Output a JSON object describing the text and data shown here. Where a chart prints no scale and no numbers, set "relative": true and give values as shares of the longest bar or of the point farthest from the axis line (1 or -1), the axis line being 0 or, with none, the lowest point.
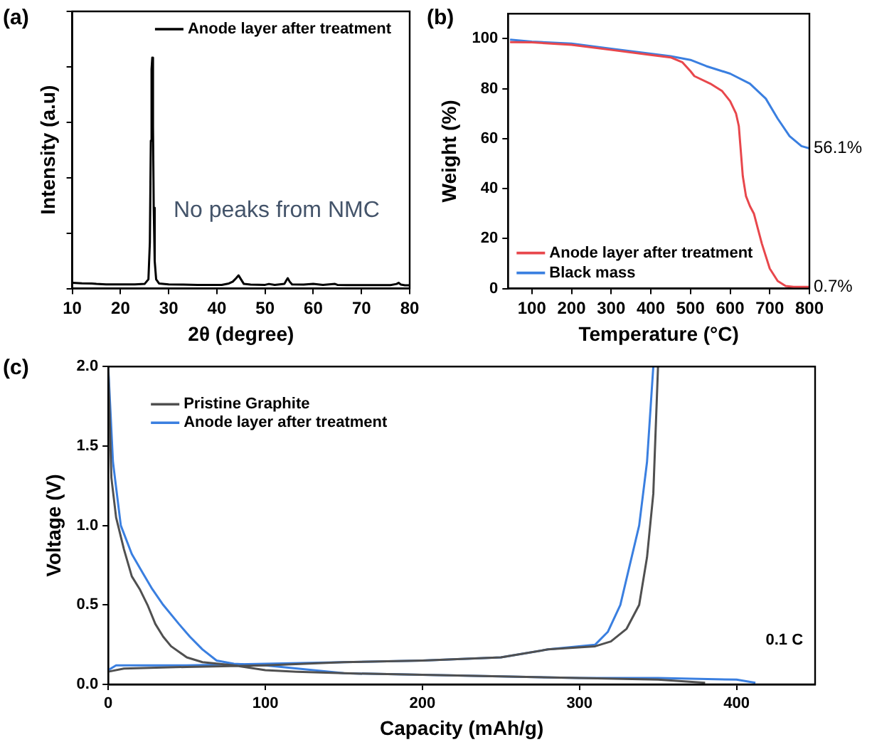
{
  "chart_data": [
    {
      "type": "line",
      "title": "(a)",
      "xlabel": "2θ (degree)",
      "ylabel": "Intensity (a.u)",
      "relative": true,
      "tick_labels": "x",
      "xlim": [
        10,
        80
      ],
      "xticks": [
        10,
        20,
        30,
        40,
        50,
        60,
        70,
        80
      ],
      "legend": "top right",
      "grid": false,
      "annotations": [
        "No peaks from NMC"
      ],
      "series": [
        {
          "name": "Anode layer after treatment",
          "color": "#000000",
          "x": [
            10,
            12,
            14,
            15,
            17,
            20,
            23,
            25,
            25.8,
            26.1,
            26.3,
            26.45,
            26.6,
            26.75,
            26.9,
            27.1,
            27.4,
            28,
            30,
            33,
            36,
            39,
            41,
            42.5,
            43.3,
            44,
            44.5,
            45,
            45.6,
            47,
            50,
            50.8,
            52,
            54,
            54.4,
            54.7,
            55.1,
            55.6,
            58,
            60,
            62,
            64.5,
            65,
            67,
            70,
            73,
            76,
            77.3,
            77.7,
            78.2,
            79,
            80
          ],
          "values": [
            0.025,
            0.023,
            0.022,
            0.02,
            0.018,
            0.018,
            0.018,
            0.02,
            0.04,
            0.2,
            0.64,
            0.95,
            1,
            0.7,
            0.35,
            0.12,
            0.04,
            0.022,
            0.018,
            0.017,
            0.016,
            0.016,
            0.016,
            0.022,
            0.03,
            0.045,
            0.057,
            0.04,
            0.02,
            0.017,
            0.016,
            0.02,
            0.016,
            0.02,
            0.035,
            0.045,
            0.03,
            0.018,
            0.017,
            0.02,
            0.016,
            0.02,
            0.016,
            0.015,
            0.015,
            0.015,
            0.015,
            0.02,
            0.025,
            0.017,
            0.014,
            0.014
          ]
        }
      ]
    },
    {
      "type": "line",
      "title": "(b)",
      "xlabel": "Temperature (°C)",
      "ylabel": "Weight (%)",
      "xlim": [
        40,
        800
      ],
      "xticks": [
        100,
        200,
        300,
        400,
        500,
        600,
        700,
        800
      ],
      "ylim": [
        0,
        110
      ],
      "yticks": [
        0,
        20,
        40,
        60,
        80,
        100
      ],
      "legend": "bottom left",
      "grid": false,
      "annotations": [
        {
          "text": "56.1%",
          "x": 800,
          "y": 56.1
        },
        {
          "text": "0.7%",
          "x": 800,
          "y": 0.7
        }
      ],
      "series": [
        {
          "name": "Anode layer after treatment",
          "color": "#e8474c",
          "x": [
            45,
            100,
            200,
            300,
            400,
            450,
            480,
            500,
            510,
            550,
            580,
            600,
            615,
            622,
            627,
            632,
            640,
            650,
            660,
            670,
            680,
            700,
            720,
            740,
            760,
            800
          ],
          "values": [
            98.6,
            98.5,
            97.5,
            95.5,
            93.5,
            92.5,
            90.5,
            87,
            85,
            82,
            79,
            75,
            70,
            65,
            55,
            45,
            37,
            33,
            30,
            24,
            18,
            8,
            3,
            1,
            0.7,
            0.7
          ]
        },
        {
          "name": "Black mass",
          "color": "#3a7fe0",
          "x": [
            45,
            100,
            200,
            300,
            400,
            450,
            500,
            540,
            600,
            650,
            690,
            720,
            750,
            780,
            800
          ],
          "values": [
            99.6,
            98.8,
            98,
            96,
            94,
            93,
            91.5,
            89,
            86,
            82,
            76,
            68,
            61,
            57,
            56.1
          ]
        }
      ]
    },
    {
      "type": "line",
      "title": "(c)",
      "xlabel": "Capacity (mAh/g)",
      "ylabel": "Voltage (V)",
      "xlim": [
        0,
        450
      ],
      "xticks": [
        0,
        100,
        200,
        300,
        400
      ],
      "ylim": [
        0,
        2
      ],
      "yticks": [
        {
          "value": 0,
          "label": "0.0"
        },
        {
          "value": 0.5,
          "label": "0.5"
        },
        {
          "value": 1,
          "label": "1.0"
        },
        {
          "value": 1.5,
          "label": "1.5"
        },
        {
          "value": 2,
          "label": "2.0"
        }
      ],
      "legend": "top left",
      "grid": false,
      "annotations": [
        "0.1 C"
      ],
      "series": [
        {
          "name": "Pristine Graphite",
          "color": "#505050",
          "x": [
            0,
            2,
            5,
            10,
            15,
            20,
            25,
            30,
            35,
            40,
            50,
            60,
            80,
            100,
            120,
            150,
            200,
            250,
            300,
            350,
            380,
            null,
            0,
            10,
            50,
            100,
            150,
            200,
            250,
            280,
            310,
            320,
            330,
            338,
            343,
            347,
            350
          ],
          "values": [
            2,
            1.3,
            1.05,
            0.85,
            0.68,
            0.6,
            0.5,
            0.38,
            0.3,
            0.24,
            0.17,
            0.14,
            0.12,
            0.09,
            0.08,
            0.07,
            0.06,
            0.05,
            0.04,
            0.03,
            0.01,
            null,
            0.08,
            0.1,
            0.11,
            0.12,
            0.14,
            0.15,
            0.17,
            0.22,
            0.24,
            0.27,
            0.35,
            0.5,
            0.8,
            1.2,
            2
          ]
        },
        {
          "name": "Anode layer after treatment",
          "color": "#3a7fe0",
          "x": [
            0,
            3,
            8,
            15,
            22,
            28,
            35,
            45,
            52,
            60,
            69,
            80,
            100,
            150,
            200,
            250,
            300,
            350,
            400,
            412,
            null,
            0,
            5,
            50,
            100,
            150,
            200,
            250,
            280,
            310,
            318,
            326,
            332,
            338,
            343,
            347
          ],
          "values": [
            2,
            1.4,
            1.0,
            0.82,
            0.7,
            0.6,
            0.5,
            0.38,
            0.3,
            0.22,
            0.15,
            0.13,
            0.12,
            0.07,
            0.06,
            0.05,
            0.04,
            0.04,
            0.03,
            0.01,
            null,
            0.09,
            0.12,
            0.12,
            0.13,
            0.14,
            0.15,
            0.17,
            0.22,
            0.25,
            0.33,
            0.5,
            0.75,
            1.0,
            1.4,
            2
          ]
        }
      ]
    }
  ]
}
